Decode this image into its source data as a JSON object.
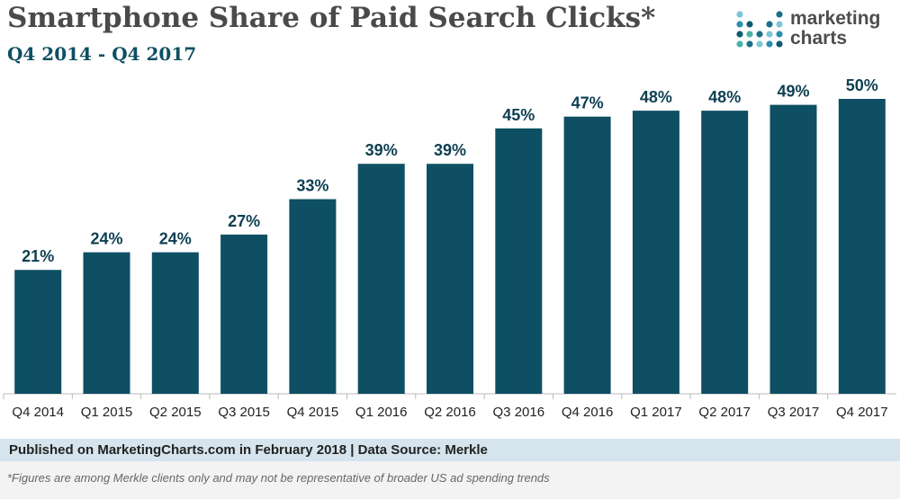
{
  "header": {
    "title": "Smartphone Share of Paid Search Clicks*",
    "subtitle": "Q4 2014 - Q4 2017"
  },
  "logo": {
    "line1": "marketing",
    "line2": "charts",
    "dot_colors": [
      "#7bc6d8",
      "#2a8fb0",
      "#0e5a73",
      "#4ab3a8",
      "#1c6f87"
    ]
  },
  "footer": {
    "source": "Published on MarketingCharts.com in February 2018 | Data Source: Merkle",
    "footnote": "*Figures are among Merkle clients only and may not be representative of broader US ad spending trends"
  },
  "colors": {
    "bar": "#0e4f63",
    "value_label": "#0e3f52",
    "footer_band": "#d5e4ed"
  },
  "chart_data": {
    "type": "bar",
    "title": "Smartphone Share of Paid Search Clicks*",
    "subtitle": "Q4 2014 - Q4 2017",
    "categories": [
      "Q4 2014",
      "Q1 2015",
      "Q2 2015",
      "Q3 2015",
      "Q4 2015",
      "Q1 2016",
      "Q2 2016",
      "Q3 2016",
      "Q4 2016",
      "Q1 2017",
      "Q2 2017",
      "Q3 2017",
      "Q4 2017"
    ],
    "values": [
      21,
      24,
      24,
      27,
      33,
      39,
      39,
      45,
      47,
      48,
      48,
      49,
      50
    ],
    "value_labels": [
      "21%",
      "24%",
      "24%",
      "27%",
      "33%",
      "39%",
      "39%",
      "45%",
      "47%",
      "48%",
      "48%",
      "49%",
      "50%"
    ],
    "xlabel": "",
    "ylabel": "",
    "ylim": [
      0,
      50
    ],
    "grid": false,
    "legend": "none"
  }
}
